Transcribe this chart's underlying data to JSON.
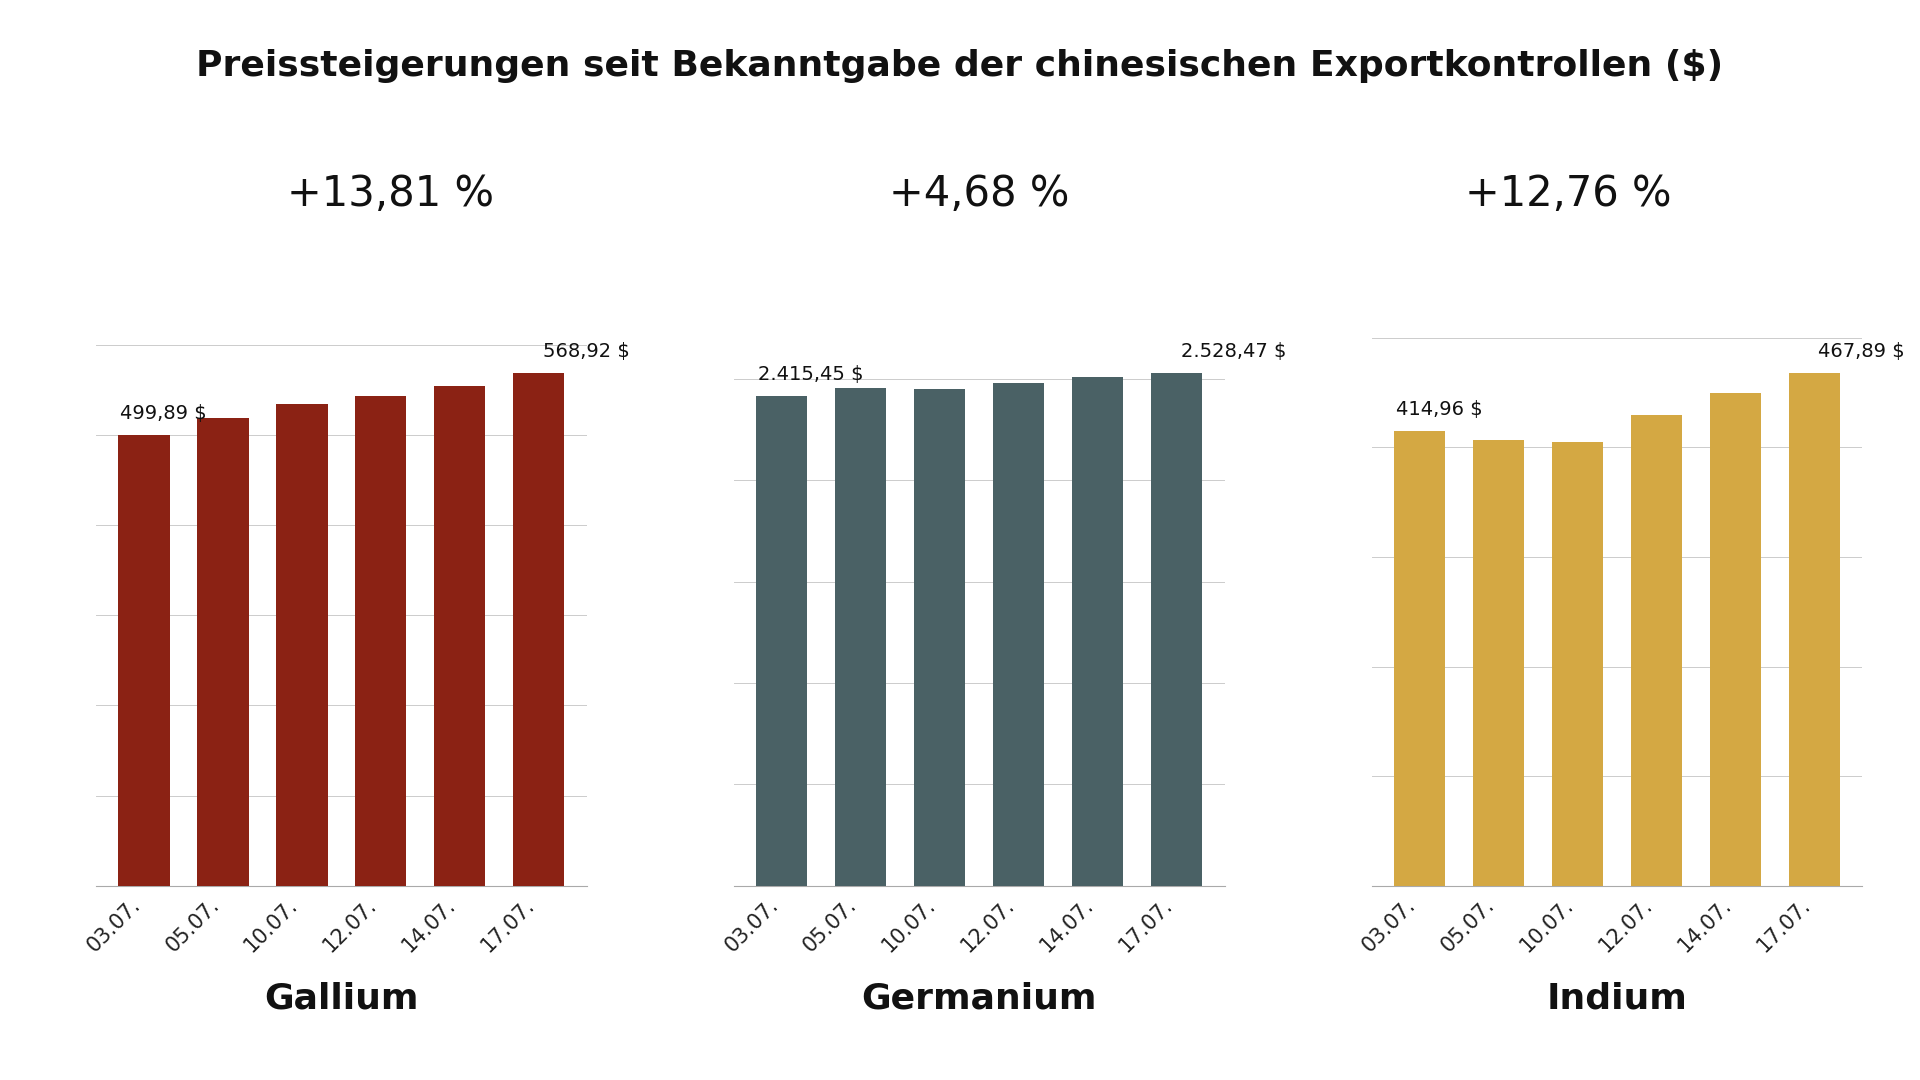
{
  "title": "Preissteigerungen seit Bekanntgabe der chinesischen Exportkontrollen ($)",
  "background_color": "#ffffff",
  "categories": [
    "03.07.",
    "05.07.",
    "10.07.",
    "12.07.",
    "14.07.",
    "17.07."
  ],
  "gallium": {
    "label": "Gallium",
    "color": "#8B2214",
    "pct": "+13,81 %",
    "values": [
      499.89,
      519.5,
      535.0,
      543.0,
      555.0,
      568.92
    ],
    "first_label": "499,89 $",
    "last_label": "568,92 $"
  },
  "germanium": {
    "label": "Germanium",
    "color": "#4A6165",
    "pct": "+4,68 %",
    "values": [
      2415.45,
      2455.0,
      2452.0,
      2478.0,
      2510.0,
      2528.47
    ],
    "first_label": "2.415,45 $",
    "last_label": "2.528,47 $"
  },
  "indium": {
    "label": "Indium",
    "color": "#D4A843",
    "pct": "+12,76 %",
    "values": [
      414.96,
      407.0,
      405.0,
      430.0,
      450.0,
      467.89
    ],
    "first_label": "414,96 $",
    "last_label": "467,89 $"
  },
  "title_fontsize": 26,
  "pct_fontsize": 30,
  "tick_fontsize": 15,
  "bar_label_fontsize": 14,
  "xlabel_fontsize": 26
}
